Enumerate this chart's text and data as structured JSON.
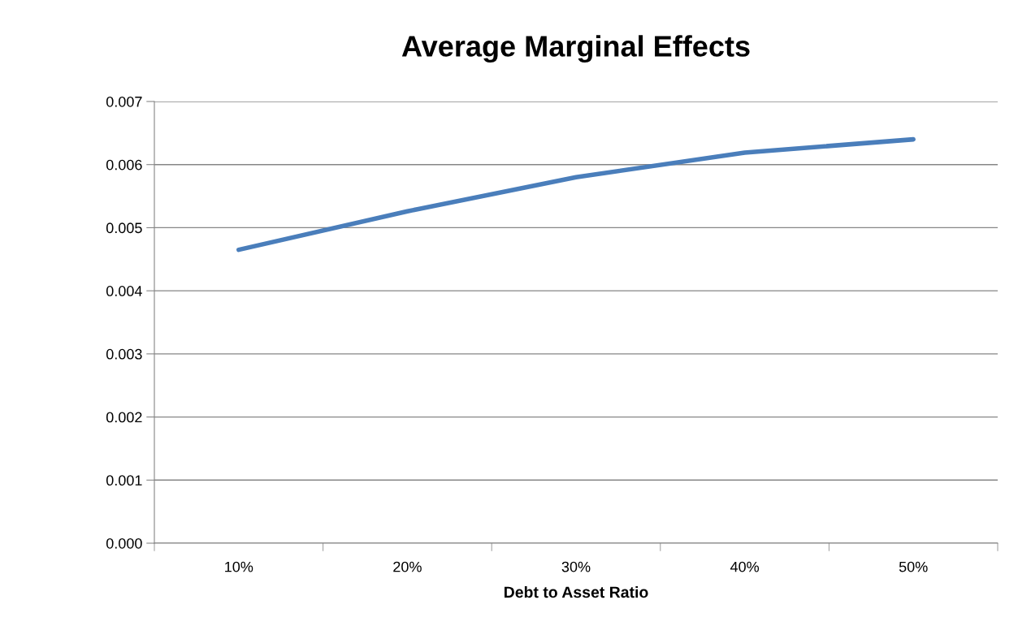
{
  "chart_data": {
    "type": "line",
    "title": "Average Marginal Effects",
    "xlabel": "Debt to Asset Ratio",
    "categories": [
      "10%",
      "20%",
      "30%",
      "40%",
      "50%"
    ],
    "series": [
      {
        "color": "#4a7ebb",
        "values": [
          0.00465,
          0.00526,
          0.0058,
          0.00619,
          0.0064
        ]
      }
    ],
    "ylim": [
      0,
      0.007
    ],
    "yticks": [
      {
        "value": 0,
        "label": "0.000"
      },
      {
        "value": 0.001,
        "label": "0.001"
      },
      {
        "value": 0.002,
        "label": "0.002"
      },
      {
        "value": 0.003,
        "label": "0.003"
      },
      {
        "value": 0.004,
        "label": "0.004"
      },
      {
        "value": 0.005,
        "label": "0.005"
      },
      {
        "value": 0.006,
        "label": "0.006"
      },
      {
        "value": 0.007,
        "label": "0.007"
      }
    ],
    "grid": "y",
    "legend": false,
    "marker": "none",
    "line_style": "solid"
  }
}
